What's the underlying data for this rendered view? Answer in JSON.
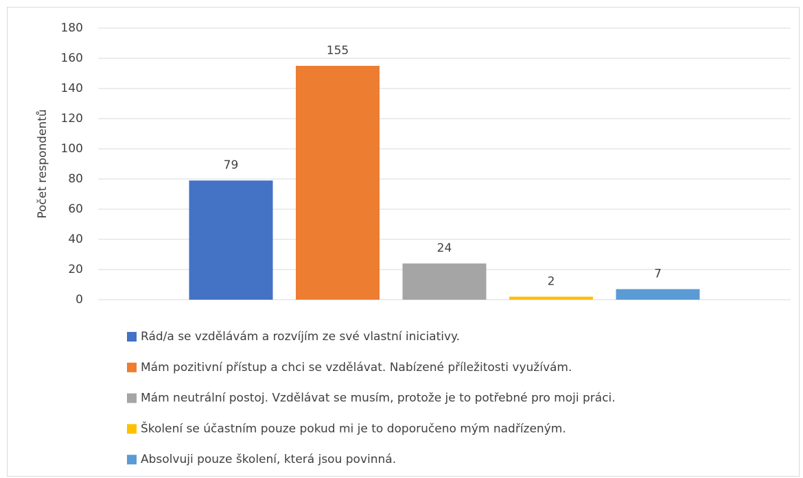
{
  "chart_data": {
    "type": "bar",
    "y_label": "Počet respondentů",
    "series": [
      {
        "name": "Rád/a se vzdělávám a rozvíjím ze své vlastní iniciativy.",
        "color": "#4472c4",
        "values": [
          79
        ]
      },
      {
        "name": "Mám pozitivní přístup a chci se vzdělávat. Nabízené příležitosti využívám.",
        "color": "#ed7d31",
        "values": [
          155
        ]
      },
      {
        "name": "Mám neutrální postoj. Vzdělávat se musím, protože je to potřebné pro moji práci.",
        "color": "#a5a5a5",
        "values": [
          24
        ]
      },
      {
        "name": "Školení se účastním pouze pokud mi je to doporučeno mým nadřízeným.",
        "color": "#ffc000",
        "values": [
          2
        ]
      },
      {
        "name": "Absolvuji pouze školení, která jsou povinná.",
        "color": "#5b9bd5",
        "values": [
          7
        ]
      }
    ],
    "ylim": [
      0,
      180
    ],
    "yticks": [
      0,
      20,
      40,
      60,
      80,
      100,
      120,
      140,
      160,
      180
    ],
    "grid": true,
    "legend": "bottom"
  }
}
